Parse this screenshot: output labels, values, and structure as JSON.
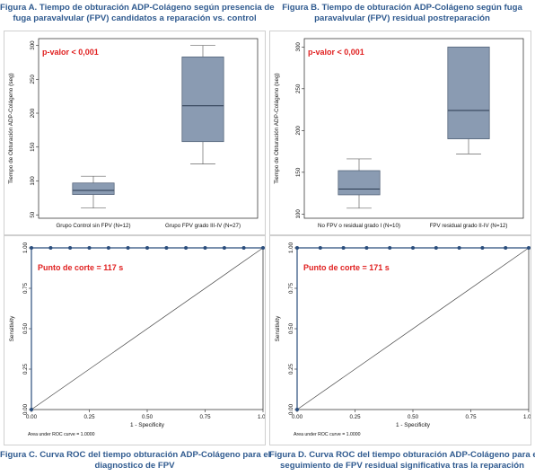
{
  "figures": {
    "A": {
      "caption_line1": "Figura A. Tiempo de obturación ADP-Colágeno según presencia de",
      "caption_line2": "fuga paravalvular (FPV) candidatos a reparación vs. control"
    },
    "B": {
      "caption_line1": "Figura B. Tiempo de obturación ADP-Colágeno según fuga",
      "caption_line2": "paravalvular (FPV) residual postreparación"
    },
    "C": {
      "caption_line1": "Figura C.  Curva ROC del tiempo obturación ADP-Colágeno  para el",
      "caption_line2": "diagnostico de FPV"
    },
    "D": {
      "caption_line1": "Figura D. Curva ROC del tiempo obturación ADP-Colágeno para el",
      "caption_line2": "seguimiento de FPV residual significativa tras la reparación"
    }
  },
  "chart_data": [
    {
      "id": "A",
      "type": "box",
      "ylabel": "Tiempo de Obturación ADP-Colágeno (seg)",
      "yticks": [
        50,
        100,
        150,
        200,
        250,
        300
      ],
      "ylim": [
        45,
        310
      ],
      "categories": [
        "Grupo Control sin FPV (N=12)",
        "Grupo FPV grado III-IV (N=27)"
      ],
      "boxes": [
        {
          "whisker_low": 60,
          "q1": 80,
          "median": 86,
          "q3": 97,
          "whisker_high": 107
        },
        {
          "whisker_low": 125,
          "q1": 158,
          "median": 211,
          "q3": 283,
          "whisker_high": 300
        }
      ],
      "annotation": "p-valor < 0,001",
      "box_color": "#8a9bb2",
      "annotation_color": "#e02020"
    },
    {
      "id": "B",
      "type": "box",
      "ylabel": "Tiempo de Obturación ADP-Colágeno (seg)",
      "yticks": [
        100,
        150,
        200,
        250,
        300
      ],
      "ylim": [
        95,
        310
      ],
      "categories": [
        "No FPV o residual grado I (N=10)",
        "FPV residual grado II-IV (N=12)"
      ],
      "boxes": [
        {
          "whisker_low": 107,
          "q1": 123,
          "median": 130,
          "q3": 152,
          "whisker_high": 166
        },
        {
          "whisker_low": 172,
          "q1": 190,
          "median": 224,
          "q3": 300,
          "whisker_high": 300
        }
      ],
      "annotation": "p-valor < 0,001",
      "box_color": "#8a9bb2",
      "annotation_color": "#e02020"
    },
    {
      "id": "C",
      "type": "line",
      "xlabel": "1 - Specificity",
      "ylabel": "Sensitivity",
      "xticks": [
        "0.00",
        "0.25",
        "0.50",
        "0.75",
        "1.00"
      ],
      "yticks": [
        "0.00",
        "0.25",
        "0.50",
        "0.75",
        "1.00"
      ],
      "xlim": [
        0,
        1
      ],
      "ylim": [
        0,
        1
      ],
      "roc_points": [
        [
          0,
          0
        ],
        [
          0,
          1
        ],
        [
          0.083,
          1
        ],
        [
          0.167,
          1
        ],
        [
          0.25,
          1
        ],
        [
          0.333,
          1
        ],
        [
          0.417,
          1
        ],
        [
          0.5,
          1
        ],
        [
          0.583,
          1
        ],
        [
          0.667,
          1
        ],
        [
          0.75,
          1
        ],
        [
          0.833,
          1
        ],
        [
          0.917,
          1
        ],
        [
          1,
          1
        ]
      ],
      "reference_line": [
        [
          0,
          0
        ],
        [
          1,
          1
        ]
      ],
      "area_note": "Area under ROC curve = 1.0000",
      "annotation": "Punto de corte = 117 s",
      "line_color": "#2a4d7c",
      "annotation_color": "#e02020"
    },
    {
      "id": "D",
      "type": "line",
      "xlabel": "1 - Specificity",
      "ylabel": "Sensitivity",
      "xticks": [
        "0.00",
        "0.25",
        "0.50",
        "0.75",
        "1.00"
      ],
      "yticks": [
        "0.00",
        "0.25",
        "0.50",
        "0.75",
        "1.00"
      ],
      "xlim": [
        0,
        1
      ],
      "ylim": [
        0,
        1
      ],
      "roc_points": [
        [
          0,
          0
        ],
        [
          0,
          1
        ],
        [
          0.1,
          1
        ],
        [
          0.2,
          1
        ],
        [
          0.3,
          1
        ],
        [
          0.4,
          1
        ],
        [
          0.5,
          1
        ],
        [
          0.6,
          1
        ],
        [
          0.7,
          1
        ],
        [
          0.8,
          1
        ],
        [
          0.9,
          1
        ],
        [
          1,
          1
        ]
      ],
      "reference_line": [
        [
          0,
          0
        ],
        [
          1,
          1
        ]
      ],
      "area_note": "Area under ROC curve = 1.0000",
      "annotation": "Punto de corte = 171 s",
      "line_color": "#2a4d7c",
      "annotation_color": "#e02020"
    }
  ]
}
